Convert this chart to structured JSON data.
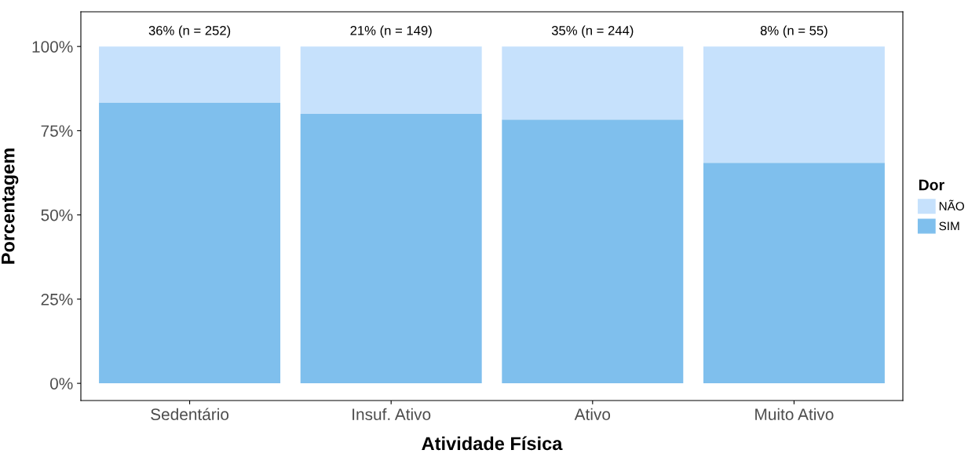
{
  "chart_data": {
    "type": "bar",
    "stacked": true,
    "xlabel": "Atividade Física",
    "ylabel": "Porcentagem",
    "legend_title": "Dor",
    "categories": [
      "Sedentário",
      "Insuf. Ativo",
      "Ativo",
      "Muito Ativo"
    ],
    "series": [
      {
        "name": "SIM",
        "color": "#7fbfed",
        "values": [
          83.4,
          80.0,
          78.3,
          65.5
        ]
      },
      {
        "name": "NÃO",
        "color": "#c6e1fc",
        "values": [
          16.6,
          20.0,
          21.7,
          34.5
        ]
      }
    ],
    "ylim": [
      -5.1,
      110.3
    ],
    "yticks": [
      {
        "value": 0,
        "label": "0%"
      },
      {
        "value": 25,
        "label": "25%"
      },
      {
        "value": 50,
        "label": "50%"
      },
      {
        "value": 75,
        "label": "75%"
      },
      {
        "value": 100,
        "label": "100%"
      }
    ],
    "annotations": [
      {
        "text": "36% (n = 252)",
        "x": "Sedentário",
        "y": 100
      },
      {
        "text": "21% (n = 149)",
        "x": "Insuf. Ativo",
        "y": 100
      },
      {
        "text": "35% (n = 244)",
        "x": "Ativo",
        "y": 100
      },
      {
        "text": "8% (n = 55)",
        "x": "Muito Ativo",
        "y": 100
      }
    ],
    "legend": "right",
    "grid": false
  }
}
